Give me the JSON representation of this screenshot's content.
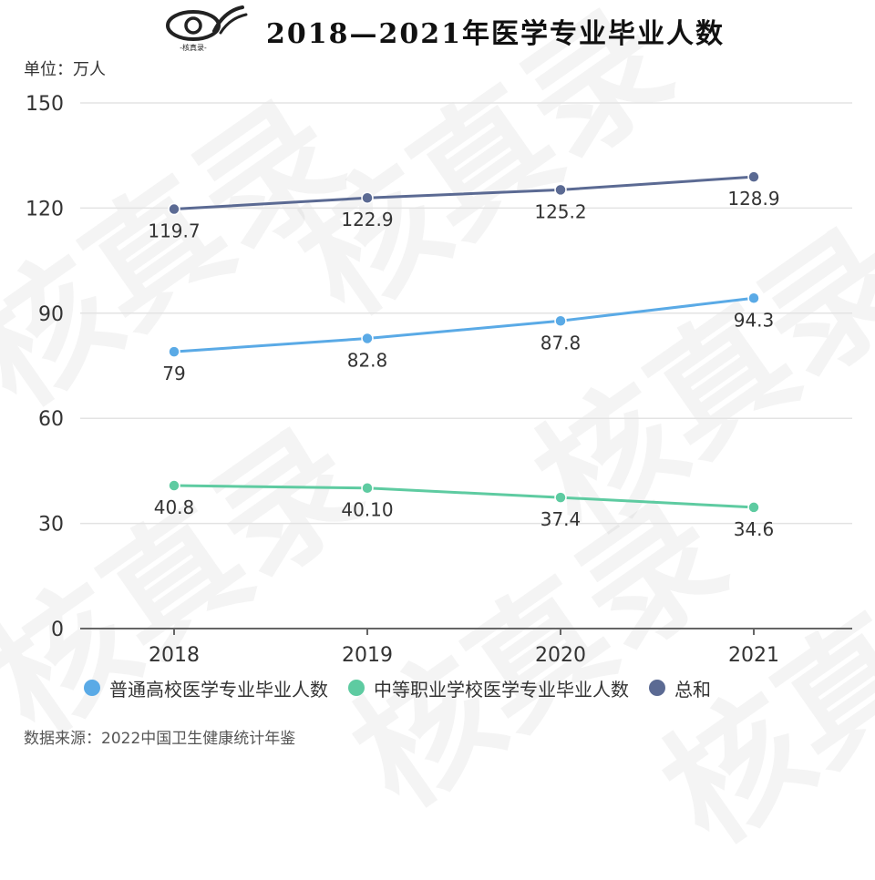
{
  "title": "2018—2021年医学专业毕业人数",
  "logo": {
    "caption": "-核真录-"
  },
  "unit_label": "单位：万人",
  "source": "数据来源：2022中国卫生健康统计年鉴",
  "watermark_text": "核真录",
  "chart_data": {
    "type": "line",
    "title": "2018—2021年医学专业毕业人数",
    "ylabel": "单位：万人",
    "xlabel": "",
    "categories": [
      "2018",
      "2019",
      "2020",
      "2021"
    ],
    "ylim": [
      0,
      150
    ],
    "yticks": [
      0,
      30,
      60,
      90,
      120,
      150
    ],
    "grid": true,
    "legend_position": "bottom",
    "series": [
      {
        "name": "普通高校医学专业毕业人数",
        "color": "#5aaae6",
        "values": [
          79,
          82.8,
          87.8,
          94.3
        ],
        "labels": [
          "79",
          "82.8",
          "87.8",
          "94.3"
        ],
        "label_side": "below"
      },
      {
        "name": "中等职业学校医学专业毕业人数",
        "color": "#5ecba1",
        "values": [
          40.8,
          40.1,
          37.4,
          34.6
        ],
        "labels": [
          "40.8",
          "40.10",
          "37.4",
          "34.6"
        ],
        "label_side": "below"
      },
      {
        "name": "总和",
        "color": "#5b6a93",
        "values": [
          119.7,
          122.9,
          125.2,
          128.9
        ],
        "labels": [
          "119.7",
          "122.9",
          "125.2",
          "128.9"
        ],
        "label_side": "below"
      }
    ]
  }
}
